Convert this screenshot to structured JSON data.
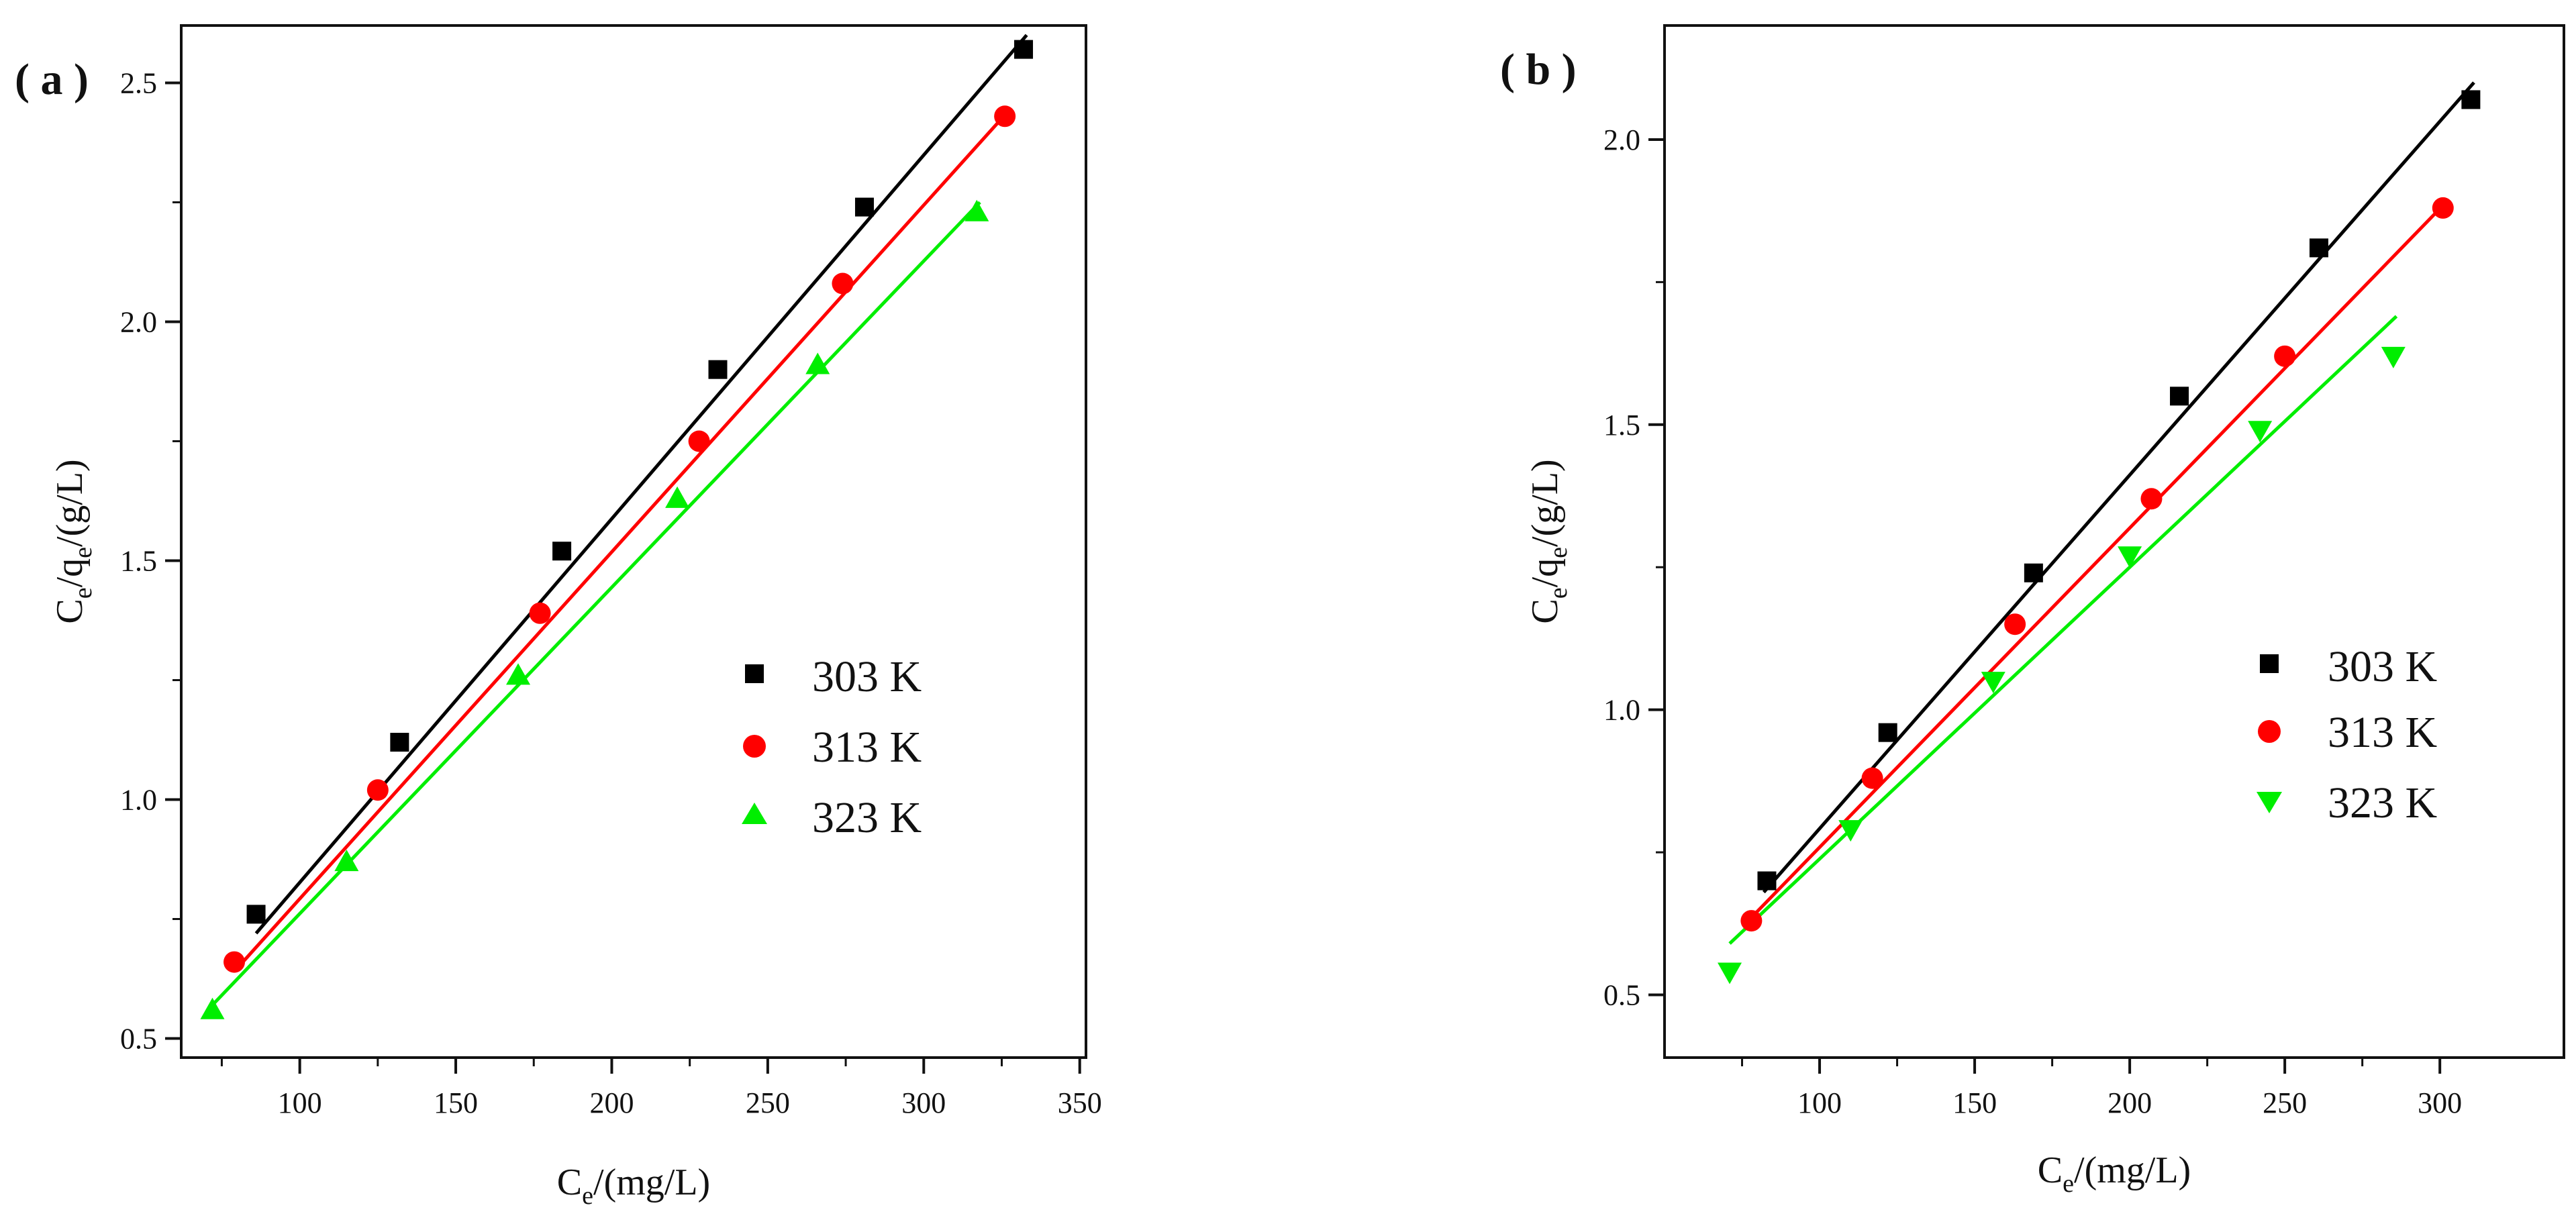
{
  "chart_data": [
    {
      "type": "scatter",
      "panel_label": "( a )",
      "xlabel": {
        "main": "C",
        "sub": "e",
        "tail": "/(mg/L)"
      },
      "ylabel": {
        "c": "C",
        "sub1": "e",
        "mid": "/q",
        "sub2": "e",
        "tail": "/(g/L)"
      },
      "xlim": [
        62,
        352
      ],
      "ylim": [
        0.46,
        2.62
      ],
      "xticks": [
        100,
        150,
        200,
        250,
        300,
        350
      ],
      "yticks": [
        0.5,
        1.0,
        1.5,
        2.0,
        2.5
      ],
      "xtick_labels": [
        "100",
        "150",
        "200",
        "250",
        "300",
        "350"
      ],
      "ytick_labels": [
        "0.5",
        "1.0",
        "1.5",
        "2.0",
        "2.5"
      ],
      "legend_position": "right-middle",
      "series": [
        {
          "name": "303 K",
          "color": "#000000",
          "marker": "square",
          "x": [
            86,
            132,
            184,
            234,
            281,
            332
          ],
          "y": [
            0.76,
            1.12,
            1.52,
            1.9,
            2.24,
            2.57
          ],
          "fit": {
            "x": [
              86,
              333
            ],
            "y": [
              0.72,
              2.6
            ]
          }
        },
        {
          "name": "313 K",
          "color": "#ff0000",
          "marker": "circle",
          "x": [
            79,
            125,
            177,
            228,
            274,
            326
          ],
          "y": [
            0.66,
            1.02,
            1.39,
            1.75,
            2.08,
            2.43
          ],
          "fit": {
            "x": [
              79,
              327
            ],
            "y": [
              0.64,
              2.44
            ]
          }
        },
        {
          "name": "323 K",
          "color": "#00ee00",
          "marker": "triangle-up",
          "x": [
            72,
            115,
            170,
            221,
            266,
            317
          ],
          "y": [
            0.56,
            0.87,
            1.26,
            1.63,
            1.91,
            2.23
          ],
          "fit": {
            "x": [
              72,
              318
            ],
            "y": [
              0.57,
              2.25
            ]
          }
        }
      ]
    },
    {
      "type": "scatter",
      "panel_label": "( b )",
      "xlabel": {
        "main": "C",
        "sub": "e",
        "tail": "/(mg/L)"
      },
      "ylabel": {
        "c": "C",
        "sub1": "e",
        "mid": "/q",
        "sub2": "e",
        "tail": "/(g/L)"
      },
      "xlim": [
        50,
        340
      ],
      "ylim": [
        0.39,
        2.2
      ],
      "xticks": [
        100,
        150,
        200,
        250,
        300
      ],
      "yticks": [
        0.5,
        1.0,
        1.5,
        2.0
      ],
      "xtick_labels": [
        "100",
        "150",
        "200",
        "250",
        "300"
      ],
      "ytick_labels": [
        "0.5",
        "1.0",
        "1.5",
        "2.0"
      ],
      "legend_position": "right-middle",
      "series": [
        {
          "name": "303 K",
          "color": "#000000",
          "marker": "square",
          "x": [
            83,
            122,
            169,
            216,
            261,
            310
          ],
          "y": [
            0.7,
            0.96,
            1.24,
            1.55,
            1.81,
            2.07
          ],
          "fit": {
            "x": [
              82,
              311
            ],
            "y": [
              0.68,
              2.1
            ]
          }
        },
        {
          "name": "313 K",
          "color": "#ff0000",
          "marker": "circle",
          "x": [
            78,
            117,
            163,
            207,
            250,
            301
          ],
          "y": [
            0.63,
            0.88,
            1.15,
            1.37,
            1.62,
            1.88
          ],
          "fit": {
            "x": [
              77,
              302
            ],
            "y": [
              0.63,
              1.89
            ]
          }
        },
        {
          "name": "323 K",
          "color": "#00ee00",
          "marker": "triangle-down",
          "x": [
            71,
            110,
            156,
            200,
            242,
            285
          ],
          "y": [
            0.54,
            0.79,
            1.05,
            1.27,
            1.49,
            1.62
          ],
          "fit": {
            "x": [
              71,
              286
            ],
            "y": [
              0.59,
              1.69
            ]
          }
        }
      ]
    }
  ]
}
